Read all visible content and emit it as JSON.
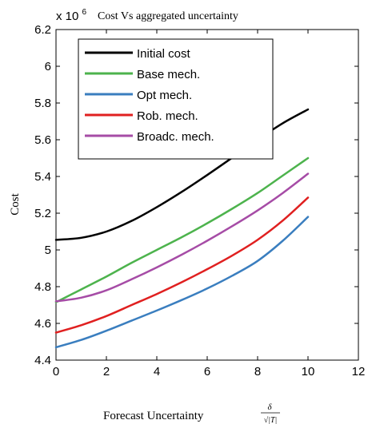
{
  "chart_data": {
    "type": "line",
    "title": "Cost Vs aggregated uncertainty",
    "scale_label_prefix": "x 10",
    "scale_label_exponent": "6",
    "xlabel": "Forecast Uncertainty",
    "xlabel_fraction_numerator": "δ",
    "xlabel_fraction_denominator": "√|T|",
    "ylabel": "Cost",
    "xlim": [
      0,
      12
    ],
    "ylim": [
      4.4,
      6.2
    ],
    "x_ticks": [
      0,
      2,
      4,
      6,
      8,
      10,
      12
    ],
    "y_ticks": [
      4.4,
      4.6,
      4.8,
      5.0,
      5.2,
      5.4,
      5.6,
      5.8,
      6.0,
      6.2
    ],
    "x_tick_labels": [
      "0",
      "2",
      "4",
      "6",
      "8",
      "10",
      "12"
    ],
    "y_tick_labels": [
      "4.4",
      "4.6",
      "4.8",
      "5",
      "5.2",
      "5.4",
      "5.6",
      "5.8",
      "6",
      "6.2"
    ],
    "grid": false,
    "legend_position": "top-left",
    "x": [
      0,
      1,
      2,
      3,
      4,
      5,
      6,
      7,
      8,
      9,
      10
    ],
    "series": [
      {
        "name": "Initial cost",
        "color": "#000000",
        "values": [
          5.055,
          5.066,
          5.1,
          5.158,
          5.233,
          5.317,
          5.408,
          5.503,
          5.6,
          5.69,
          5.765
        ]
      },
      {
        "name": "Base mech.",
        "color": "#4db34d",
        "values": [
          4.715,
          4.785,
          4.855,
          4.93,
          5.0,
          5.07,
          5.145,
          5.225,
          5.31,
          5.405,
          5.5
        ]
      },
      {
        "name": "Opt mech.",
        "color": "#3a7ebf",
        "values": [
          4.47,
          4.51,
          4.56,
          4.615,
          4.67,
          4.728,
          4.79,
          4.86,
          4.94,
          5.05,
          5.18
        ]
      },
      {
        "name": "Rob. mech.",
        "color": "#e02020",
        "values": [
          4.55,
          4.59,
          4.64,
          4.7,
          4.76,
          4.825,
          4.895,
          4.97,
          5.055,
          5.16,
          5.285
        ]
      },
      {
        "name": "Broadc. mech.",
        "color": "#a64ca6",
        "values": [
          4.72,
          4.74,
          4.78,
          4.84,
          4.905,
          4.975,
          5.05,
          5.13,
          5.215,
          5.31,
          5.415
        ]
      }
    ]
  }
}
